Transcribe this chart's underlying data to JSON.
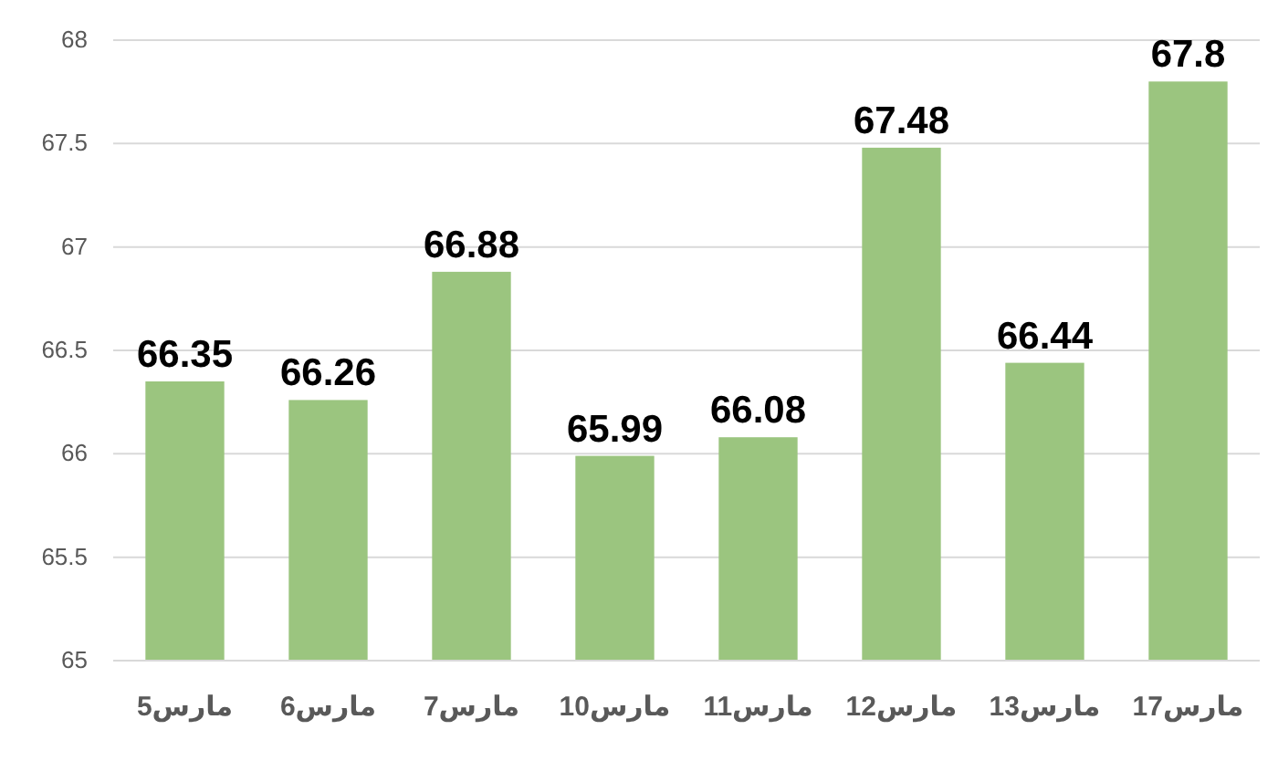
{
  "chart_data": {
    "type": "bar",
    "categories": [
      "5مارس",
      "6مارس",
      "7مارس",
      "10مارس",
      "11مارس",
      "12مارس",
      "13مارس",
      "17مارس"
    ],
    "values": [
      66.35,
      66.26,
      66.88,
      65.99,
      66.08,
      67.48,
      66.44,
      67.8
    ],
    "color": "#9bc57f",
    "ylim": [
      65,
      68
    ],
    "yticks": [
      65,
      65.5,
      66,
      66.5,
      67,
      67.5,
      68
    ],
    "grid": "y",
    "data_labels": true
  }
}
